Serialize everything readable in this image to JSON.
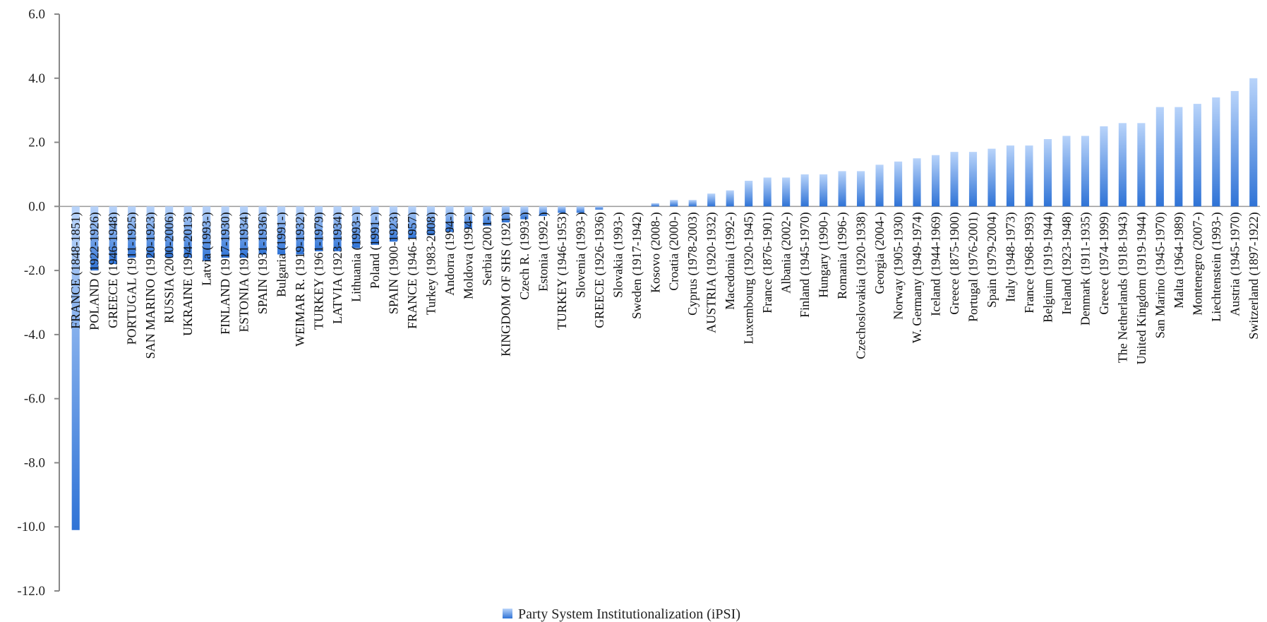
{
  "chart_data": {
    "type": "bar",
    "title": "",
    "xlabel": "",
    "ylabel": "",
    "ylim": [
      -12,
      6
    ],
    "y_ticks": [
      "6.0",
      "4.0",
      "2.0",
      "0.0",
      "-2.0",
      "-4.0",
      "-6.0",
      "-8.0",
      "-10.0",
      "-12.0"
    ],
    "grid": false,
    "legend_position": "bottom",
    "bar_color": "#2f73d6",
    "series": [
      {
        "name": "Party System Institutionalization (iPSI)"
      }
    ],
    "categories": [
      "FRANCE (1848-1851)",
      "POLAND (1922-1926)",
      "GREECE (1946-1948)",
      "PORTUGAL (1911-1925)",
      "SAN MARINO (1920-1923)",
      "RUSSIA (2000-2006)",
      "UKRAINE (1994-2013)",
      "Latvia (1993-)",
      "FINLAND (1917-1930)",
      "ESTONIA (1921-1934)",
      "SPAIN (1931-1936)",
      "Bulgaria (1991-)",
      "WEIMAR R. (1919-1932)",
      "TURKEY (1961-1979)",
      "LATVIA (1923-1934)",
      "Lithuania (1993-)",
      "Poland (1991-)",
      "SPAIN (1900-1923)",
      "FRANCE (1946-1957)",
      "Turkey (1983-2008)",
      "Andorra (1994-)",
      "Moldova (1994-)",
      "Serbia (2001-)",
      "KINGDOM OF SHS (1921)",
      "Czech R. (1993-)",
      "Estonia (1992-)",
      "TURKEY (1946-1953)",
      "Slovenia (1993-)",
      "GREECE (1926-1936)",
      "Slovakia (1993-)",
      "Sweden (1917-1942)",
      "Kosovo (2008-)",
      "Croatia (2000-)",
      "Cyprus (1978-2003)",
      "AUSTRIA (1920-1932)",
      "Macedonia (1992-)",
      "Luxembourg (1920-1945)",
      "France (1876-1901)",
      "Albania (2002-)",
      "Finland (1945-1970)",
      "Hungary (1990-)",
      "Romania (1996-)",
      "Czechoslovakia (1920-1938)",
      "Georgia (2004-)",
      "Norway (1905-1930)",
      "W. Germany (1949-1974)",
      "Iceland (1944-1969)",
      "Greece (1875-1900)",
      "Portugal (1976-2001)",
      "Spain (1979-2004)",
      "Italy (1948-1973)",
      "France (1968-1993)",
      "Belgium (1919-1944)",
      "Ireland (1923-1948)",
      "Denmark (1911-1935)",
      "Greece (1974-1999)",
      "The Netherlands (1918-1943)",
      "United Kingdom (1919-1944)",
      "San Marino (1945-1970)",
      "Malta (1964-1989)",
      "Montenegro (2007-)",
      "Liechtenstein (1993-)",
      "Austria (1945-1970)",
      "Switzerland (1897-1922)"
    ],
    "values": [
      -10.1,
      -2.0,
      -1.8,
      -1.6,
      -1.6,
      -1.6,
      -1.6,
      -1.7,
      -1.6,
      -1.6,
      -1.5,
      -1.5,
      -1.5,
      -1.4,
      -1.4,
      -1.3,
      -1.2,
      -1.1,
      -1.0,
      -0.9,
      -0.8,
      -0.7,
      -0.6,
      -0.5,
      -0.4,
      -0.3,
      -0.2,
      -0.2,
      -0.1,
      0.0,
      0.0,
      0.1,
      0.2,
      0.2,
      0.4,
      0.5,
      0.8,
      0.9,
      0.9,
      1.0,
      1.0,
      1.1,
      1.1,
      1.3,
      1.4,
      1.5,
      1.6,
      1.7,
      1.7,
      1.8,
      1.9,
      1.9,
      2.1,
      2.2,
      2.2,
      2.5,
      2.6,
      2.6,
      3.1,
      3.1,
      3.2,
      3.4,
      3.6,
      4.0
    ]
  }
}
